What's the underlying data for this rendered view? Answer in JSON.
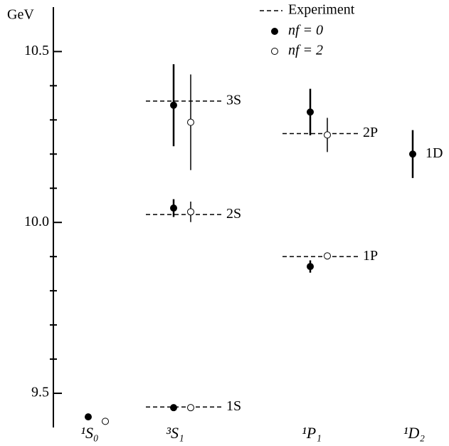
{
  "chart_data": {
    "type": "spectrum",
    "ylabel": "GeV",
    "ylim": [
      9.4,
      10.63
    ],
    "yticks": [
      9.5,
      {
        "value": 10,
        "label": "10.0"
      },
      10.5
    ],
    "minor_yticks": [
      9.6,
      9.7,
      9.8,
      9.9,
      10.1,
      10.2,
      10.3,
      10.4
    ],
    "categories": [
      "¹S₀",
      "³S₁",
      "¹P₁",
      "¹D₂"
    ],
    "series": [
      {
        "name": "Experiment",
        "color": "#000000"
      },
      {
        "name": "nf = 0",
        "color": "#000000"
      },
      {
        "name": "nf = 2",
        "color": "#ffffff"
      }
    ],
    "levels": [
      {
        "category": 0,
        "label": null,
        "experiment": null,
        "nf0": 9.431,
        "nf0_error": null,
        "nf2": 9.418,
        "nf2_error": null
      },
      {
        "category": 1,
        "label": "1S",
        "experiment": 9.46,
        "nf0": 9.458,
        "nf0_error": null,
        "nf2": 9.458,
        "nf2_error": null
      },
      {
        "category": 1,
        "label": "2S",
        "experiment": 10.023,
        "nf0": 10.042,
        "nf0_error": 0.026,
        "nf2": 10.031,
        "nf2_error": 0.03
      },
      {
        "category": 1,
        "label": "3S",
        "experiment": 10.355,
        "nf0": 10.343,
        "nf0_error": 0.12,
        "nf2": 10.293,
        "nf2_error": 0.14
      },
      {
        "category": 2,
        "label": "1P",
        "experiment": 9.9,
        "nf0": 9.871,
        "nf0_error": 0.018,
        "nf2": 9.902,
        "nf2_error": null
      },
      {
        "category": 2,
        "label": "2P",
        "experiment": 10.26,
        "nf0": 10.323,
        "nf0_error": 0.068,
        "nf2": 10.256,
        "nf2_error": 0.05
      },
      {
        "category": 3,
        "label": "1D",
        "experiment": null,
        "nf0": 10.2,
        "nf0_error": 0.07,
        "nf2": null,
        "nf2_error": null
      }
    ]
  }
}
